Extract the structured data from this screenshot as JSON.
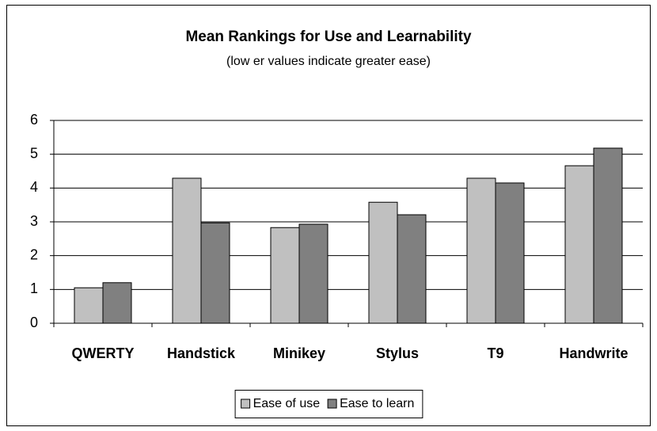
{
  "chart_data": {
    "type": "bar",
    "title": "Mean Rankings for Use and Learnability",
    "subtitle": "(low er values indicate greater ease)",
    "categories": [
      "QWERTY",
      "Handstick",
      "Minikey",
      "Stylus",
      "T9",
      "Handwrite"
    ],
    "series": [
      {
        "name": "Ease of use",
        "color": "#c0c0c0",
        "values": [
          1.05,
          4.29,
          2.83,
          3.58,
          4.29,
          4.66
        ]
      },
      {
        "name": "Ease to learn",
        "color": "#808080",
        "values": [
          1.2,
          2.97,
          2.93,
          3.21,
          4.15,
          5.18
        ]
      }
    ],
    "ylim": [
      0,
      6
    ],
    "yticks": [
      0,
      1,
      2,
      3,
      4,
      5,
      6
    ],
    "grid": true,
    "legend": "bottom"
  }
}
